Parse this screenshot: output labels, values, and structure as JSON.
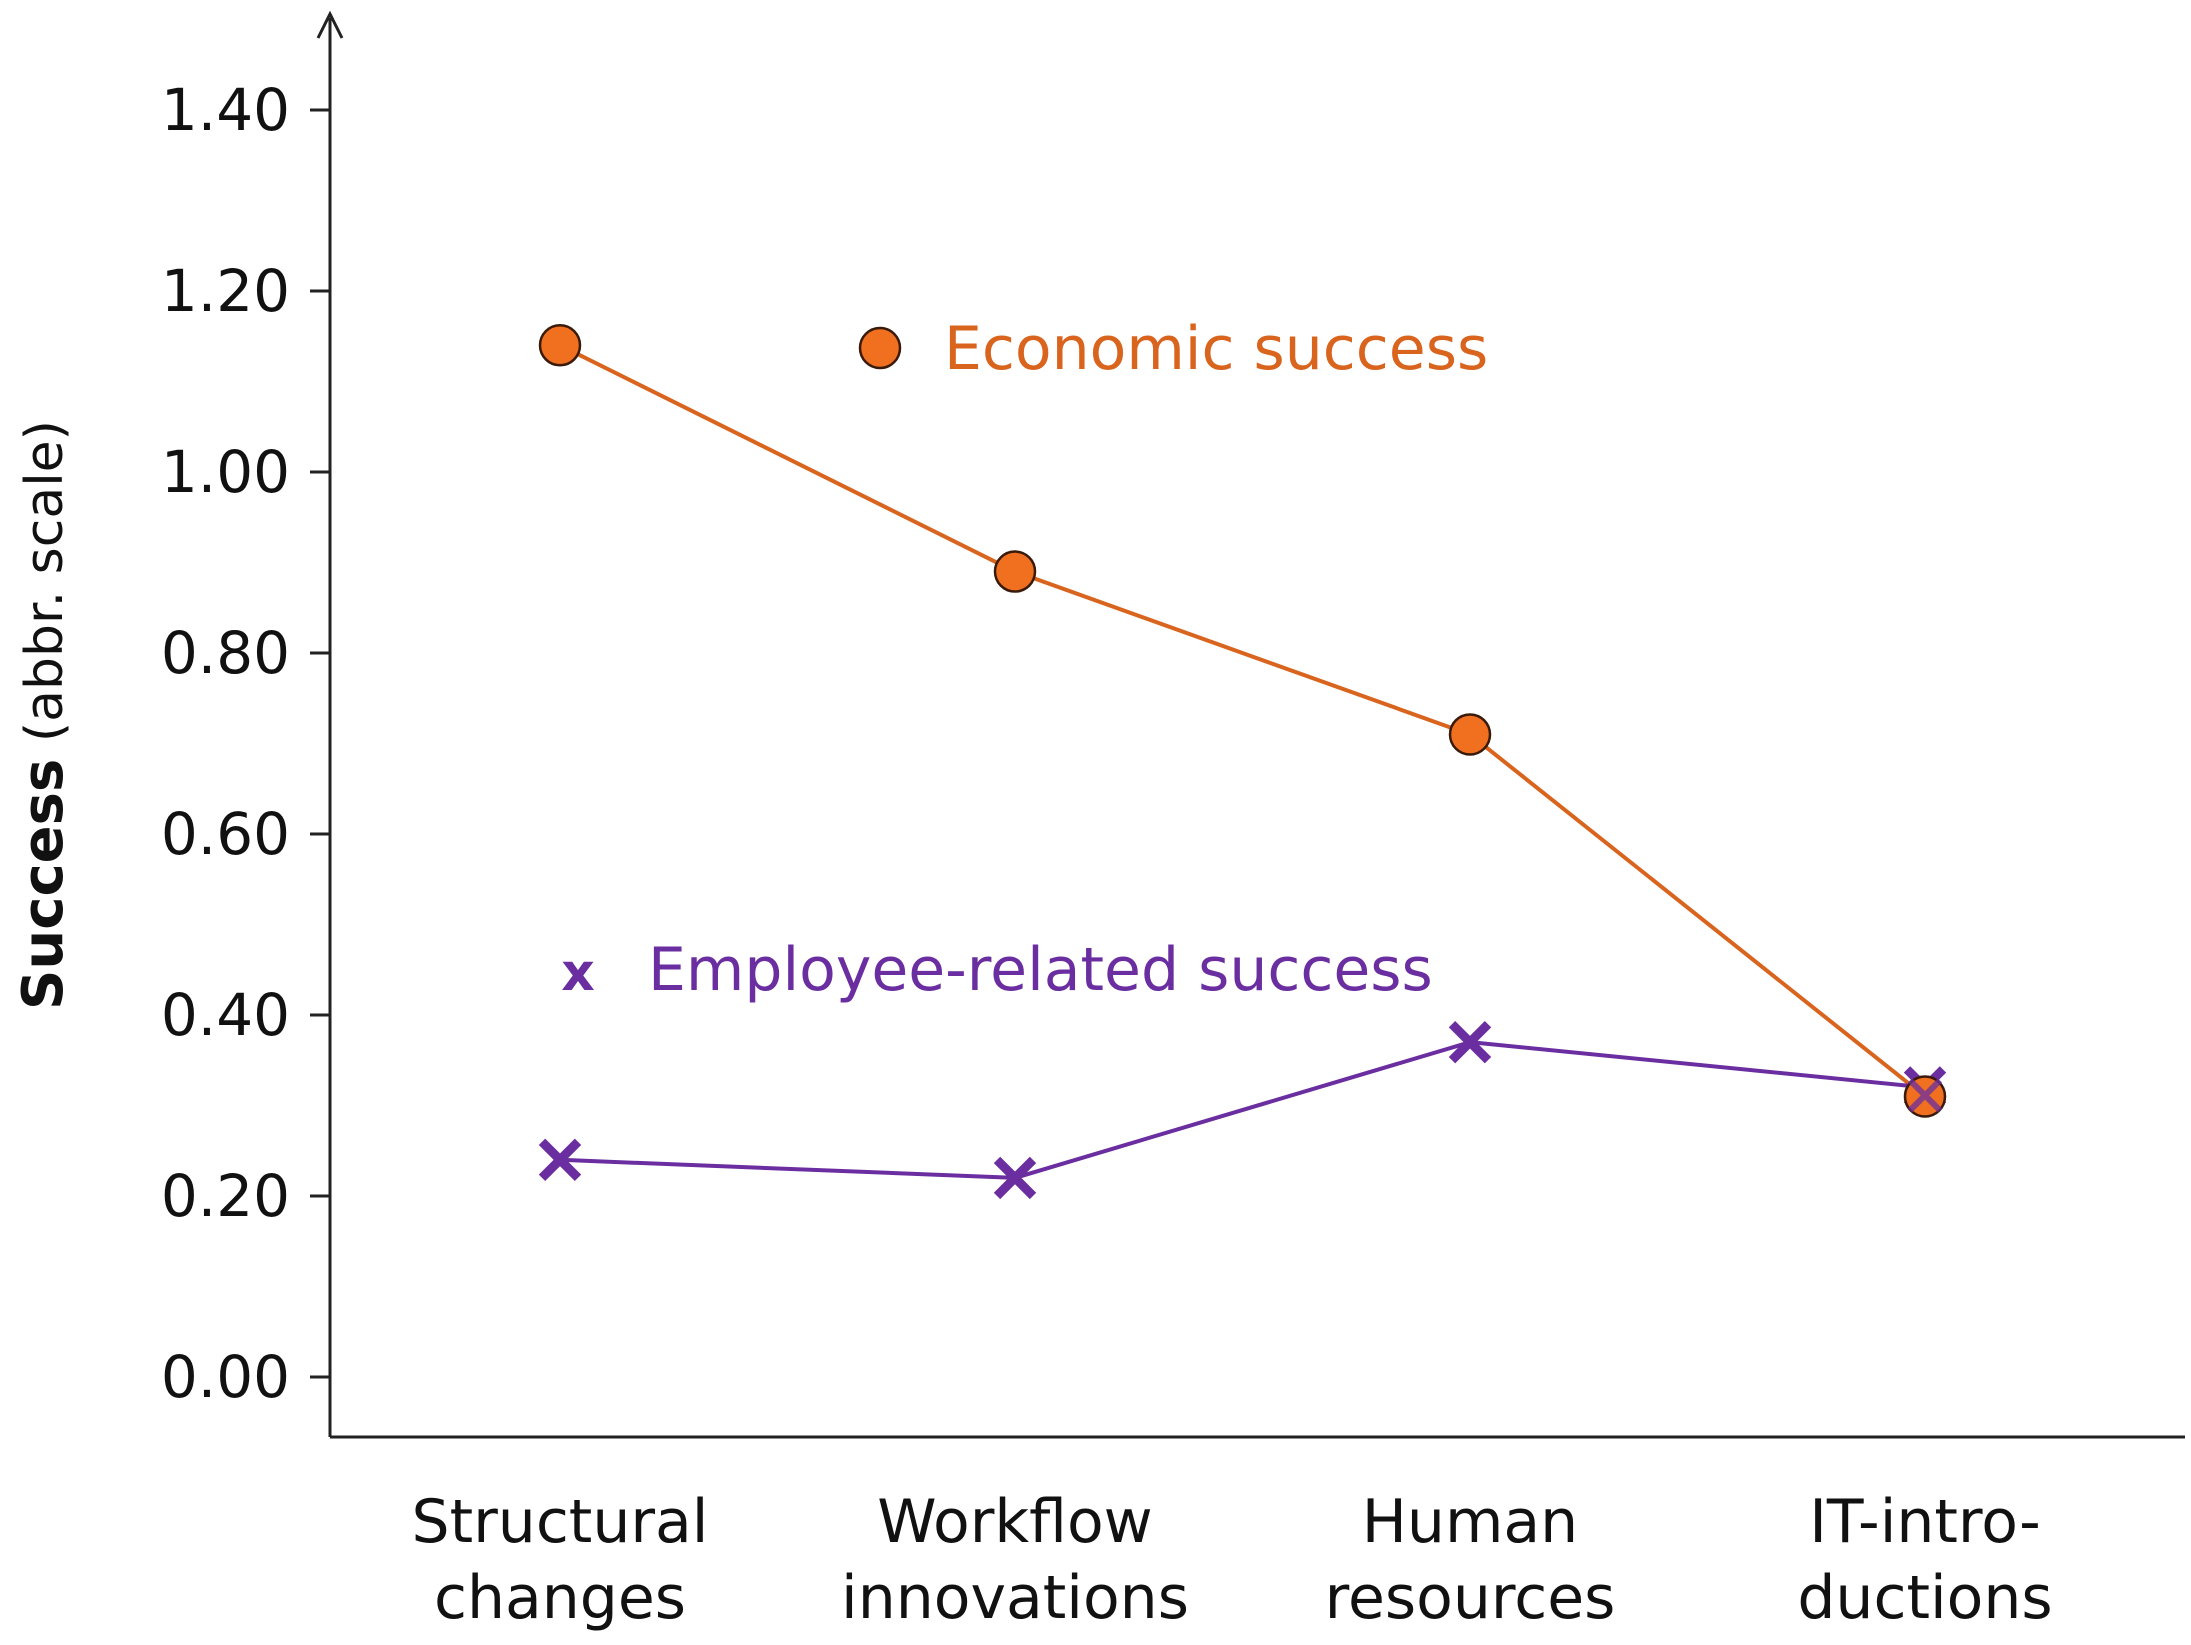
{
  "chart_data": {
    "type": "line",
    "categories": [
      [
        "Structural",
        "changes"
      ],
      [
        "Workflow",
        "innovations"
      ],
      [
        "Human",
        "resources"
      ],
      [
        "IT-intro-",
        "ductions"
      ]
    ],
    "ylabel": {
      "bold": "Success",
      "normal": " (abbr. scale)"
    },
    "ylim": [
      0,
      1.46
    ],
    "yticks": [
      "0.00",
      "0.20",
      "0.40",
      "0.60",
      "0.80",
      "1.00",
      "1.20",
      "1.40"
    ],
    "ytick_values": [
      0,
      0.2,
      0.4,
      0.6,
      0.8,
      1.0,
      1.2,
      1.4
    ],
    "grid": false,
    "series": [
      {
        "name": "Economic success",
        "marker": "circle",
        "color": "#d9641e",
        "fill": "#f07020",
        "values": [
          1.14,
          0.89,
          0.71,
          0.31
        ]
      },
      {
        "name": "Employee-related success",
        "marker": "x",
        "color": "#6a2ea0",
        "values": [
          0.24,
          0.22,
          0.37,
          0.32
        ]
      }
    ]
  }
}
